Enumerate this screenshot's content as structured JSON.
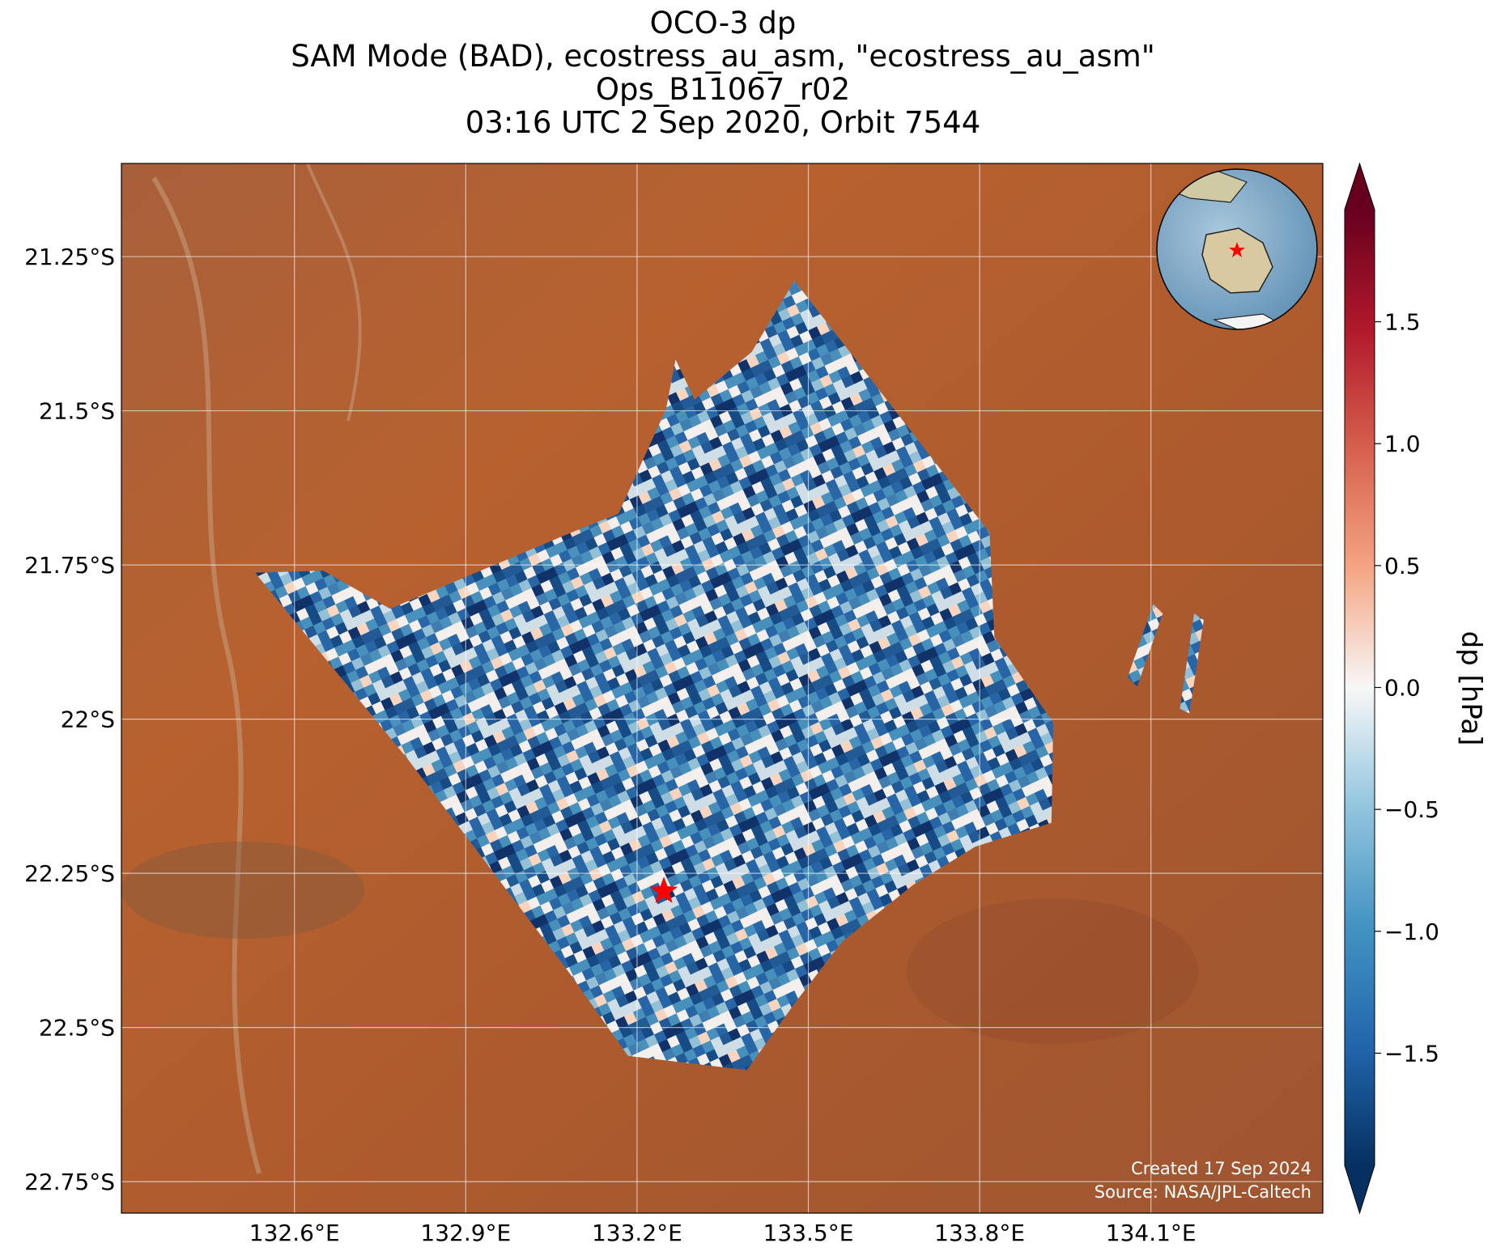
{
  "chart_data": {
    "type": "map",
    "title_lines": [
      "OCO-3 dp",
      "SAM Mode (BAD), ecostress_au_asm, \"ecostress_au_asm\"",
      "Ops_B11067_r02",
      "03:16 UTC 2 Sep 2020, Orbit 7544"
    ],
    "xlim": [
      132.297,
      134.401
    ],
    "ylim": [
      -22.801,
      -21.099
    ],
    "xticks": [
      {
        "value": 132.6,
        "label": "132.6°E"
      },
      {
        "value": 132.9,
        "label": "132.9°E"
      },
      {
        "value": 133.2,
        "label": "133.2°E"
      },
      {
        "value": 133.5,
        "label": "133.5°E"
      },
      {
        "value": 133.8,
        "label": "133.8°E"
      },
      {
        "value": 134.1,
        "label": "134.1°E"
      }
    ],
    "yticks": [
      {
        "value": -21.25,
        "label": "21.25°S"
      },
      {
        "value": -21.5,
        "label": "21.5°S"
      },
      {
        "value": -21.75,
        "label": "21.75°S"
      },
      {
        "value": -22,
        "label": "22°S"
      },
      {
        "value": -22.25,
        "label": "22.25°S"
      },
      {
        "value": -22.5,
        "label": "22.5°S"
      },
      {
        "value": -22.75,
        "label": "22.75°S"
      }
    ],
    "grid": true,
    "target": {
      "lon": 133.247,
      "lat": -22.279,
      "color": "#ff0000"
    },
    "colorbar": {
      "label": "dp [hPa]",
      "lim": [
        -1.96,
        1.96
      ],
      "ticks": [
        1.5,
        {
          "value": 1.0,
          "label": "1.0"
        },
        0.5,
        {
          "value": 0,
          "label": "0.0"
        },
        {
          "value": -0.5,
          "label": "−0.5"
        },
        {
          "value": -1.0,
          "label": "−1.0"
        },
        {
          "value": -1.5,
          "label": "−1.5"
        }
      ]
    },
    "credits": [
      "Created 17 Sep 2024",
      "Source: NASA/JPL-Caltech"
    ]
  }
}
